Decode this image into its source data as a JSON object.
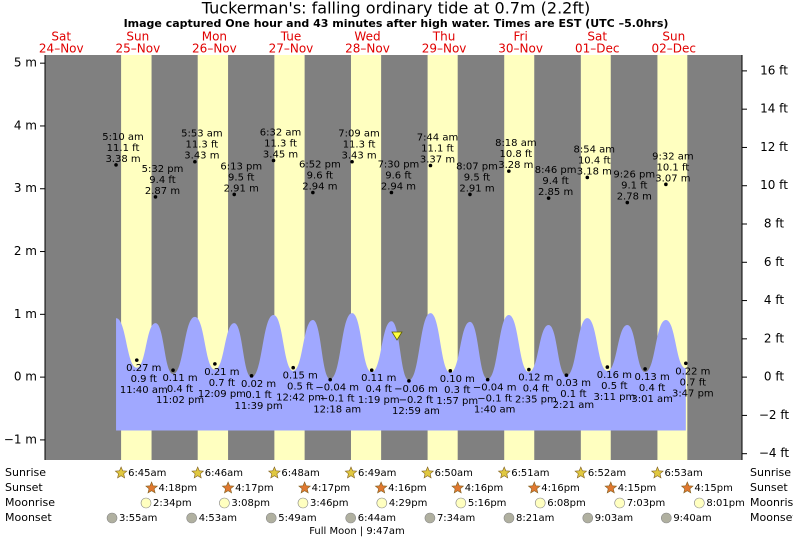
{
  "chart_data": {
    "type": "tide",
    "title": "Tuckerman's: falling  ordinary tide at 0.7m (2.2ft)",
    "subtitle": "Image captured One hour and 43 minutes after high water. Times are EST (UTC –5.0hrs)",
    "note": "Full Moon | 9:47am",
    "ylim": [
      -1.32,
      5.13
    ],
    "yticks": [
      {
        "value": 5,
        "label": "5 m"
      },
      {
        "value": 4,
        "label": "4 m"
      },
      {
        "value": 3,
        "label": "3 m"
      },
      {
        "value": 2,
        "label": "2 m"
      },
      {
        "value": 1,
        "label": "1 m"
      },
      {
        "value": 0,
        "label": "0 m"
      },
      {
        "value": -1,
        "label": "−1 m"
      }
    ],
    "y2lim": [
      -4.33,
      16.83
    ],
    "y2ticks": [
      {
        "value": 16,
        "label": "16 ft"
      },
      {
        "value": 14,
        "label": "14 ft"
      },
      {
        "value": 12,
        "label": "12 ft"
      },
      {
        "value": 10,
        "label": "10 ft"
      },
      {
        "value": 8,
        "label": "8 ft"
      },
      {
        "value": 6,
        "label": "6 ft"
      },
      {
        "value": 4,
        "label": "4 ft"
      },
      {
        "value": 2,
        "label": "2 ft"
      },
      {
        "value": 0,
        "label": "0 ft"
      },
      {
        "value": -2,
        "label": "−2 ft"
      },
      {
        "value": -4,
        "label": "−4 ft"
      }
    ],
    "astro_labels": [
      "Sunrise",
      "Sunset",
      "Moonrise",
      "Moonset"
    ],
    "days": [
      {
        "name": "Sat",
        "date": "24–Nov"
      },
      {
        "name": "Sun",
        "date": "25–Nov",
        "sunrise": "6:45am",
        "sunset": "4:18pm",
        "moonrise": "2:34pm",
        "moonset": "3:55am"
      },
      {
        "name": "Mon",
        "date": "26–Nov",
        "sunrise": "6:46am",
        "sunset": "4:17pm",
        "moonrise": "3:08pm",
        "moonset": "4:53am"
      },
      {
        "name": "Tue",
        "date": "27–Nov",
        "sunrise": "6:48am",
        "sunset": "4:17pm",
        "moonrise": "3:46pm",
        "moonset": "5:49am"
      },
      {
        "name": "Wed",
        "date": "28–Nov",
        "sunrise": "6:49am",
        "sunset": "4:16pm",
        "moonrise": "4:29pm",
        "moonset": "6:44am"
      },
      {
        "name": "Thu",
        "date": "29–Nov",
        "sunrise": "6:50am",
        "sunset": "4:16pm",
        "moonrise": "5:16pm",
        "moonset": "7:34am"
      },
      {
        "name": "Fri",
        "date": "30–Nov",
        "sunrise": "6:51am",
        "sunset": "4:16pm",
        "moonrise": "6:08pm",
        "moonset": "8:21am"
      },
      {
        "name": "Sat",
        "date": "01–Dec",
        "sunrise": "6:52am",
        "sunset": "4:15pm",
        "moonrise": "7:03pm",
        "moonset": "9:03am"
      },
      {
        "name": "Sun",
        "date": "02–Dec",
        "sunrise": "6:53am",
        "sunset": "4:15pm",
        "moonrise": "8:01pm",
        "moonset": "9:40am"
      }
    ],
    "tides": [
      {
        "time": "5:10 am",
        "ft": "11.1 ft",
        "value": 3.38,
        "label": "3.38 m"
      },
      {
        "time": "11:40 am",
        "ft": "0.9 ft",
        "value": 0.27,
        "label": "0.27 m"
      },
      {
        "time": "5:32 pm",
        "ft": "9.4 ft",
        "value": 2.87,
        "label": "2.87 m"
      },
      {
        "time": "11:02 pm",
        "ft": "0.4 ft",
        "value": 0.11,
        "label": "0.11 m"
      },
      {
        "time": "5:53 am",
        "ft": "11.3 ft",
        "value": 3.43,
        "label": "3.43 m"
      },
      {
        "time": "12:09 pm",
        "ft": "0.7 ft",
        "value": 0.21,
        "label": "0.21 m"
      },
      {
        "time": "6:13 pm",
        "ft": "9.5 ft",
        "value": 2.91,
        "label": "2.91 m"
      },
      {
        "time": "11:39 pm",
        "ft": "0.1 ft",
        "value": 0.02,
        "label": "0.02 m"
      },
      {
        "time": "6:32 am",
        "ft": "11.3 ft",
        "value": 3.45,
        "label": "3.45 m"
      },
      {
        "time": "12:42 pm",
        "ft": "0.5 ft",
        "value": 0.15,
        "label": "0.15 m"
      },
      {
        "time": "6:52 pm",
        "ft": "9.6 ft",
        "value": 2.94,
        "label": "2.94 m"
      },
      {
        "time": "12:18 am",
        "ft": "−0.1 ft",
        "value": -0.04,
        "label": "−0.04 m"
      },
      {
        "time": "7:09 am",
        "ft": "11.3 ft",
        "value": 3.43,
        "label": "3.43 m"
      },
      {
        "time": "1:19 pm",
        "ft": "0.4 ft",
        "value": 0.11,
        "label": "0.11 m"
      },
      {
        "time": "7:30 pm",
        "ft": "9.6 ft",
        "value": 2.94,
        "label": "2.94 m"
      },
      {
        "time": "12:59 am",
        "ft": "−0.2 ft",
        "value": -0.06,
        "label": "−0.06 m"
      },
      {
        "time": "7:44 am",
        "ft": "11.1 ft",
        "value": 3.37,
        "label": "3.37 m"
      },
      {
        "time": "1:57 pm",
        "ft": "0.3 ft",
        "value": 0.1,
        "label": "0.10 m"
      },
      {
        "time": "8:07 pm",
        "ft": "9.5 ft",
        "value": 2.91,
        "label": "2.91 m"
      },
      {
        "time": "1:40 am",
        "ft": "−0.1 ft",
        "value": -0.04,
        "label": "−0.04 m"
      },
      {
        "time": "8:18 am",
        "ft": "10.8 ft",
        "value": 3.28,
        "label": "3.28 m"
      },
      {
        "time": "2:35 pm",
        "ft": "0.4 ft",
        "value": 0.12,
        "label": "0.12 m"
      },
      {
        "time": "8:46 pm",
        "ft": "9.4 ft",
        "value": 2.85,
        "label": "2.85 m"
      },
      {
        "time": "2:21 am",
        "ft": "0.1 ft",
        "value": 0.03,
        "label": "0.03 m"
      },
      {
        "time": "8:54 am",
        "ft": "10.4 ft",
        "value": 3.18,
        "label": "3.18 m"
      },
      {
        "time": "3:11 pm",
        "ft": "0.5 ft",
        "value": 0.16,
        "label": "0.16 m"
      },
      {
        "time": "9:26 pm",
        "ft": "9.1 ft",
        "value": 2.78,
        "label": "2.78 m"
      },
      {
        "time": "3:01 am",
        "ft": "0.4 ft",
        "value": 0.13,
        "label": "0.13 m"
      },
      {
        "time": "9:32 am",
        "ft": "10.1 ft",
        "value": 3.07,
        "label": "3.07 m"
      },
      {
        "time": "3:47 pm",
        "ft": "0.7 ft",
        "value": 0.22,
        "label": "0.22 m"
      }
    ],
    "curve": [
      0.94,
      0.15,
      0.86,
      0.05,
      0.96,
      0.12,
      0.86,
      0.0,
      0.99,
      0.1,
      0.91,
      -0.03,
      1.02,
      0.08,
      0.89,
      -0.05,
      1.02,
      0.07,
      0.88,
      -0.03,
      0.99,
      0.08,
      0.83,
      0.02,
      0.94,
      0.1,
      0.83,
      0.08,
      0.91,
      0.14
    ],
    "colors": {
      "night": "#808080",
      "day": "#ffffc0",
      "water": "#a0a8ff",
      "sunrise": "#e0c840",
      "sunset": "#e07830",
      "moonrise": "#ffffc0",
      "moonset": "#b0b0a0"
    }
  }
}
